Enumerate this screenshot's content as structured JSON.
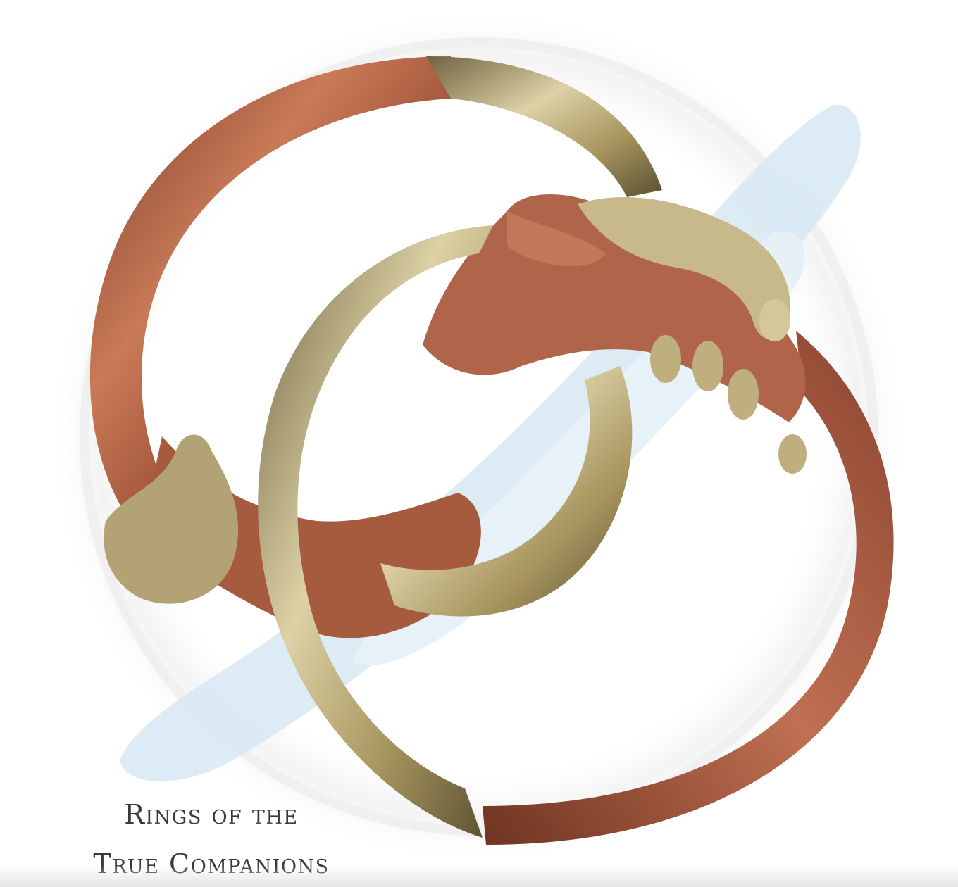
{
  "caption": {
    "line1": "Rings of the",
    "line2": "True Companions"
  },
  "colors": {
    "background": "#ffffff",
    "copper": "#a9583c",
    "copper_light": "#c97a58",
    "brass": "#b8a474",
    "brass_light": "#ddd1a6",
    "watercolor_blue": "#d6e8f3"
  }
}
